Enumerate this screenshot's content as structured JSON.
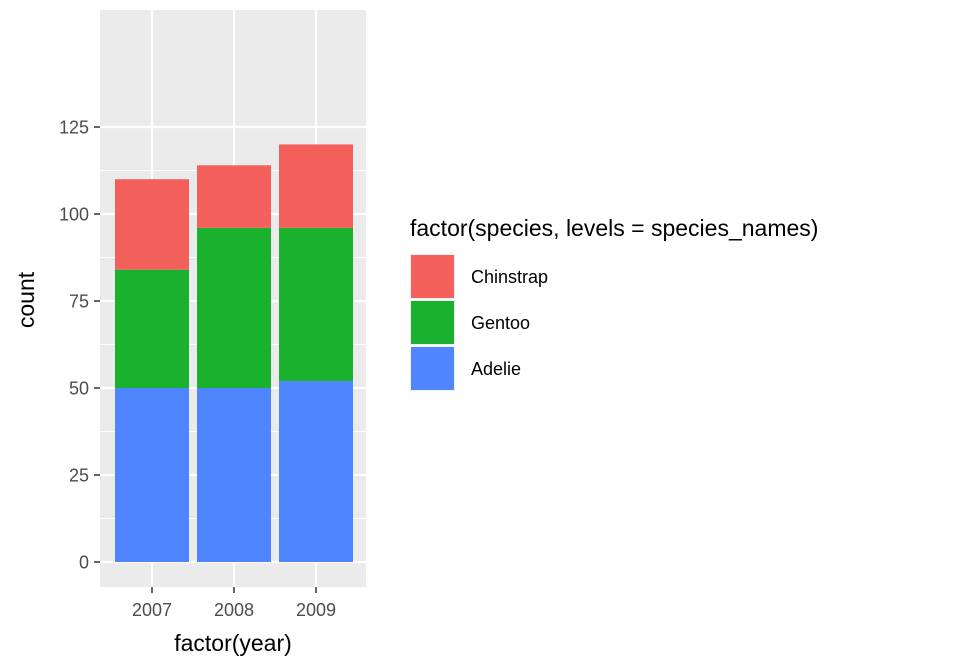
{
  "chart_data": {
    "type": "bar",
    "stacked": true,
    "title": "",
    "xlabel": "factor(year)",
    "ylabel": "count",
    "categories": [
      "2007",
      "2008",
      "2009"
    ],
    "ylim": [
      0,
      125
    ],
    "yticks": [
      0,
      25,
      50,
      75,
      100,
      125
    ],
    "grid": true,
    "legend": {
      "title": "factor(species, levels = species_names)",
      "placement": "right"
    },
    "series": [
      {
        "name": "Adelie",
        "color": "#4f86ff",
        "values": [
          50,
          50,
          52
        ]
      },
      {
        "name": "Gentoo",
        "color": "#1ab12f",
        "values": [
          34,
          46,
          44
        ]
      },
      {
        "name": "Chinstrap",
        "color": "#f4605c",
        "values": [
          26,
          18,
          24
        ]
      }
    ]
  }
}
